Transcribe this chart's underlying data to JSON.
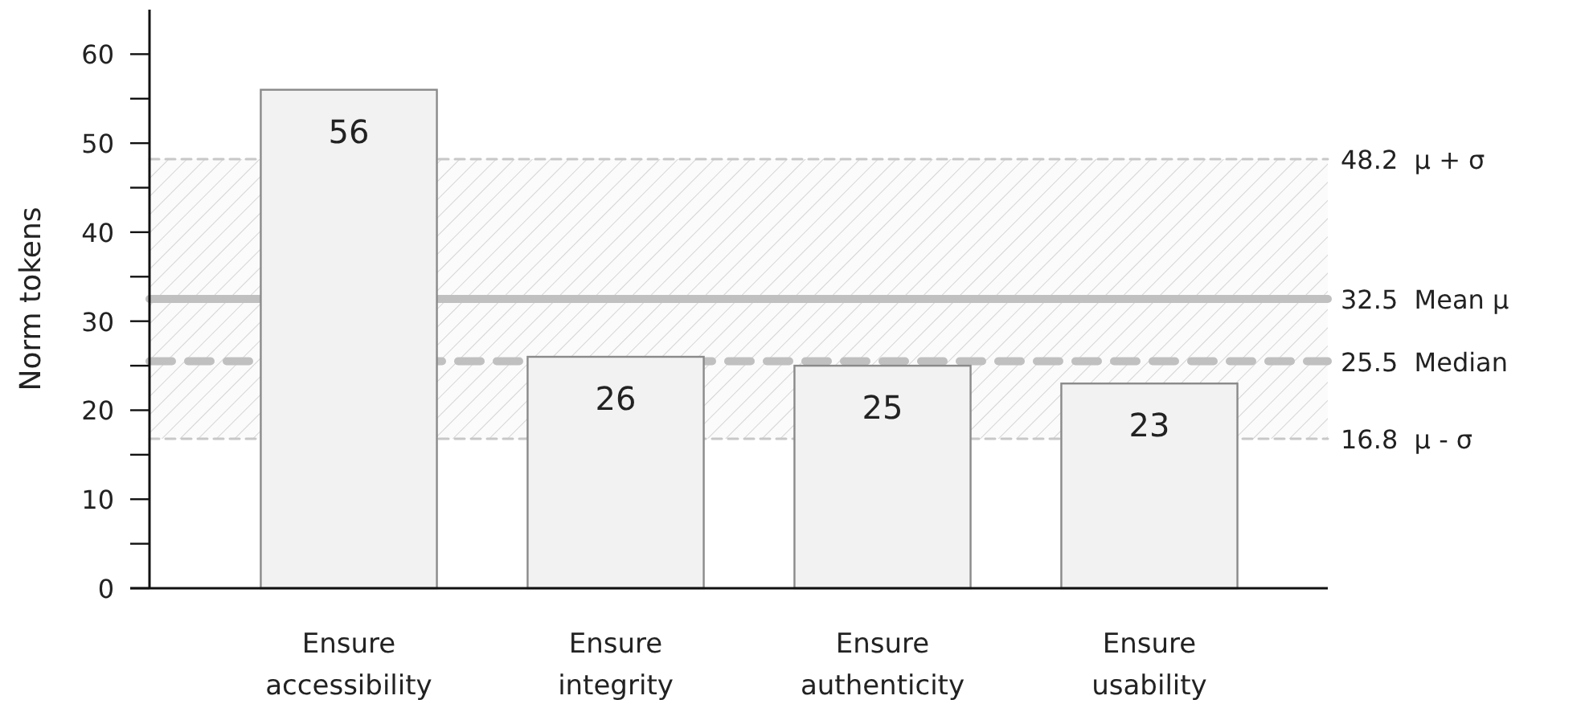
{
  "chart_data": {
    "type": "bar",
    "ylabel": "Norm tokens",
    "categories": [
      "Ensure accessibility",
      "Ensure integrity",
      "Ensure authenticity",
      "Ensure usability"
    ],
    "values": [
      56,
      26,
      25,
      23
    ],
    "color": "#f2f2f2",
    "data_labels": true,
    "ylim": [
      0,
      65
    ],
    "yticks": [
      0,
      {
        "value": 5,
        "label": null
      },
      10,
      {
        "value": 15,
        "label": null
      },
      20,
      {
        "value": 25,
        "label": null
      },
      30,
      {
        "value": 35,
        "label": null
      },
      40,
      {
        "value": 45,
        "label": null
      },
      50,
      {
        "value": 55,
        "label": null
      },
      60
    ],
    "grid": false,
    "bands": [
      {
        "axis": "y",
        "from": 16.8,
        "to": 48.2,
        "color": "#c8c8c8"
      }
    ],
    "ref_lines": [
      {
        "axis": "y",
        "value": 48.2,
        "label": "48.2  μ + σ",
        "color": "#c8c8c8",
        "line_style": "dotted"
      },
      {
        "axis": "y",
        "value": 32.5,
        "label": "32.5  Mean μ",
        "color": "#c0c0c0",
        "line_style": "solid"
      },
      {
        "axis": "y",
        "value": 25.5,
        "label": "25.5  Median",
        "color": "#c0c0c0",
        "line_style": "dashed"
      },
      {
        "axis": "y",
        "value": 16.8,
        "label": "16.8  μ - σ",
        "color": "#c8c8c8",
        "line_style": "dotted"
      }
    ]
  }
}
